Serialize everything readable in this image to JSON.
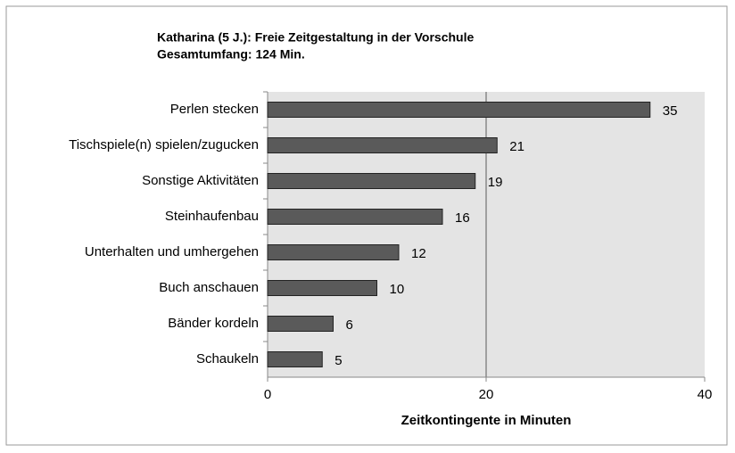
{
  "chart_data": {
    "type": "bar",
    "orientation": "horizontal",
    "title": "Katharina (5 J.): Freie Zeitgestaltung in der Vorschule",
    "subtitle": "Gesamtumfang: 124 Min.",
    "x_label": "Zeitkontingente in Minuten",
    "categories": [
      "Perlen stecken",
      "Tischspiele(n) spielen/zugucken",
      "Sonstige Aktivitäten",
      "Steinhaufenbau",
      "Unterhalten und umhergehen",
      "Buch anschauen",
      "Bänder kordeln",
      "Schaukeln"
    ],
    "values": [
      35,
      21,
      19,
      16,
      12,
      10,
      6,
      5
    ],
    "color": "#5a5a5a",
    "xlim": [
      0,
      40
    ],
    "xticks": [
      0,
      20,
      40
    ],
    "grid": true
  }
}
